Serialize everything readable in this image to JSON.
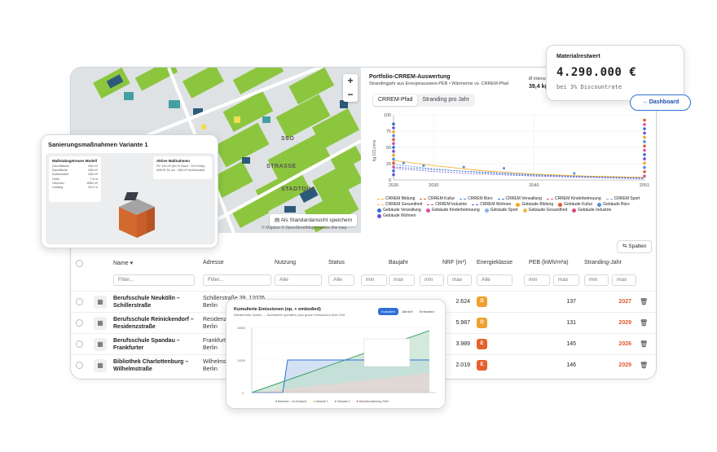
{
  "map": {
    "zoom_in": "+",
    "zoom_out": "−",
    "save_view": "Als Standardansicht speichern",
    "attribution": "© Mapbox © OpenStreetMap  Improve this map",
    "labels": [
      "STADTQUA",
      "STRASSE",
      "SSO",
      "EE"
    ]
  },
  "crrem": {
    "title": "Portfolio-CRREM-Auswertung",
    "subtitle": "Strandingjahr aus Energieausweis-PEB • Wärmemix vs. CRREM-Pfad",
    "meta_label": "Ø Intensi",
    "meta_value": "39,4 kg",
    "tabs": [
      "CRREM-Pfad",
      "Stranding pro Jahr"
    ],
    "legend": [
      {
        "label": "CRREM Bildung",
        "color": "#f5a623",
        "kind": "line"
      },
      {
        "label": "CRREM Kultur",
        "color": "#e4572e",
        "kind": "line"
      },
      {
        "label": "CRREM Büro",
        "color": "#4a90d9",
        "kind": "line"
      },
      {
        "label": "CRREM Verwaltung",
        "color": "#2f6fd8",
        "kind": "line"
      },
      {
        "label": "CRREM Kinderbetreuung",
        "color": "#d94f9e",
        "kind": "line"
      },
      {
        "label": "CRREM Sport",
        "color": "#7fb3e6",
        "kind": "line"
      },
      {
        "label": "CRREM Gesundheit",
        "color": "#f0b94a",
        "kind": "line"
      },
      {
        "label": "CRREM Industrie",
        "color": "#e0457b",
        "kind": "line"
      },
      {
        "label": "CRREM Wohnen",
        "color": "#6b4fd9",
        "kind": "line"
      },
      {
        "label": "Gebäude Bildung",
        "color": "#f5a623",
        "kind": "dot"
      },
      {
        "label": "Gebäude Kultur",
        "color": "#e4572e",
        "kind": "dot"
      },
      {
        "label": "Gebäude Büro",
        "color": "#4a90d9",
        "kind": "dot"
      },
      {
        "label": "Gebäude Verwaltung",
        "color": "#2f6fd8",
        "kind": "dot"
      },
      {
        "label": "Gebäude Kinderbetreuung",
        "color": "#d94f9e",
        "kind": "dot"
      },
      {
        "label": "Gebäude Sport",
        "color": "#7fb3e6",
        "kind": "dot"
      },
      {
        "label": "Gebäude Gesundheit",
        "color": "#f0b94a",
        "kind": "dot"
      },
      {
        "label": "Gebäude Industrie",
        "color": "#e0457b",
        "kind": "dot"
      },
      {
        "label": "Gebäude Wohnen",
        "color": "#6b4fd9",
        "kind": "dot"
      }
    ]
  },
  "chart_data": {
    "type": "line",
    "title": "",
    "xlabel": "",
    "ylabel": "kg CO₂/m²a",
    "xlim": [
      2026,
      2051
    ],
    "ylim": [
      0,
      100
    ],
    "x_ticks": [
      2026,
      2030,
      2040,
      2051
    ],
    "y_ticks": [
      0,
      25,
      50,
      75,
      100
    ],
    "series": [
      {
        "name": "CRREM Bildung",
        "x": [
          2026,
          2030,
          2035,
          2040,
          2045,
          2051
        ],
        "y": [
          30,
          22,
          14,
          9,
          6,
          4
        ]
      },
      {
        "name": "CRREM Büro",
        "x": [
          2026,
          2030,
          2035,
          2040,
          2045,
          2051
        ],
        "y": [
          24,
          17,
          11,
          7,
          5,
          3
        ]
      },
      {
        "name": "CRREM Verwaltung",
        "x": [
          2026,
          2030,
          2035,
          2040,
          2045,
          2051
        ],
        "y": [
          20,
          16,
          12,
          8,
          5,
          3
        ]
      },
      {
        "name": "CRREM Wohnen",
        "x": [
          2026,
          2030,
          2035,
          2040,
          2045,
          2051
        ],
        "y": [
          18,
          13,
          9,
          6,
          4,
          2
        ]
      }
    ]
  },
  "material": {
    "title": "Materialrestwert",
    "value": "4.290.000 €",
    "sub": "bei 3% Discountrate",
    "button": "Dashboard"
  },
  "sanierung": {
    "title": "Sanierungsmaßnahmen Variante 1",
    "model_title": "Maßstabsgetreues Modell",
    "model_rows": [
      [
        "Grundfläche",
        "206 m²"
      ],
      [
        "Dachfläche",
        "206 m²"
      ],
      [
        "Außenwand",
        "438 m²"
      ],
      [
        "Höhe",
        "7,6 m"
      ],
      [
        "Volumen",
        "1586 m³"
      ],
      [
        "Umfang",
        "56,2 m"
      ]
    ],
    "active_title": "Aktive Maßnahmen",
    "active_rows": [
      "PV 125 m² (60 % Dach · 20.6 kWp)",
      "WDVS 16 cm · 438 m² Außenwand"
    ]
  },
  "table": {
    "spalten": "Spalten",
    "headers": {
      "name": "Name",
      "adresse": "Adresse",
      "nutzung": "Nutzung",
      "status": "Status",
      "baujahr": "Baujahr",
      "nrf": "NRF (m²)",
      "energieklasse": "Energieklasse",
      "peb": "PEB (kWh/m²a)",
      "stranding": "Stranding-Jahr"
    },
    "filters": {
      "filter": "Filter...",
      "alle": "Alle",
      "min": "min",
      "max": "max"
    },
    "rows": [
      {
        "name": "Berufsschule Neukölln – Schillerstraße",
        "addr": "Schillerstraße 39, 12076 Berlin",
        "nrf": "2.624",
        "class": "D",
        "class_color": "#f0a030",
        "peb": "137",
        "stranding": "2027"
      },
      {
        "name": "Berufsschule Reinickendorf – Residenzstraße",
        "addr": "Residenzstraße 1, 13414 Berlin",
        "nrf": "5.987",
        "class": "D",
        "class_color": "#f0a030",
        "peb": "131",
        "stranding": "2029"
      },
      {
        "name": "Berufsschule Spandau – Frankfurter",
        "addr": "Frankfurter Allee, 13587 Berlin",
        "nrf": "3.989",
        "class": "E",
        "class_color": "#e4612e",
        "peb": "145",
        "stranding": "2026"
      },
      {
        "name": "Bibliothek Charlottenburg – Wilhelmstraße",
        "addr": "Wilhelmstraße 12, 10593 Berlin",
        "nrf": "2.019",
        "class": "E",
        "class_color": "#e4612e",
        "peb": "146",
        "stranding": "2029"
      }
    ]
  },
  "emissions": {
    "title": "Kumulierte Emissionen (op. + embodied)",
    "subtitle": "Wiederholte Zyklen — Summierte operative plus graue Emissionen über Zeit",
    "segments": [
      "Kumuliert",
      "Jährlich",
      "Embodied"
    ],
    "legend": [
      "Baseline – Ist-Zustand",
      "Variante 1",
      "Variante 2",
      "Dekarbonisierung 2050"
    ]
  }
}
